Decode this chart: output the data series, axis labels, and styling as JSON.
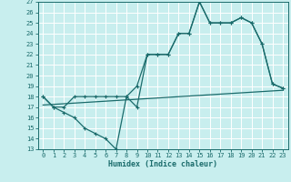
{
  "title": "",
  "xlabel": "Humidex (Indice chaleur)",
  "xlim": [
    -0.5,
    23.5
  ],
  "ylim": [
    13,
    27
  ],
  "yticks": [
    13,
    14,
    15,
    16,
    17,
    18,
    19,
    20,
    21,
    22,
    23,
    24,
    25,
    26,
    27
  ],
  "xticks": [
    0,
    1,
    2,
    3,
    4,
    5,
    6,
    7,
    8,
    9,
    10,
    11,
    12,
    13,
    14,
    15,
    16,
    17,
    18,
    19,
    20,
    21,
    22,
    23
  ],
  "bg_color": "#c8eeee",
  "line_color": "#1a6b6b",
  "grid_color": "#ffffff",
  "line1_x": [
    0,
    1,
    2,
    3,
    4,
    5,
    6,
    7,
    8,
    9,
    10,
    11,
    12,
    13,
    14,
    15,
    16,
    17,
    18,
    19,
    20,
    21,
    22,
    23
  ],
  "line1_y": [
    18,
    17,
    16.5,
    16,
    15,
    14.5,
    14,
    13,
    18,
    17,
    22,
    22,
    22,
    24,
    24,
    27,
    25,
    25,
    25,
    25.5,
    25,
    23,
    19.2,
    18.8
  ],
  "line2_x": [
    0,
    1,
    2,
    3,
    4,
    5,
    6,
    7,
    8,
    9,
    10,
    11,
    12,
    13,
    14,
    15,
    16,
    17,
    18,
    19,
    20,
    21,
    22,
    23
  ],
  "line2_y": [
    18,
    17,
    17,
    18,
    18,
    18,
    18,
    18,
    18,
    19,
    22,
    22,
    22,
    24,
    24,
    27,
    25,
    25,
    25,
    25.5,
    25,
    23,
    19.2,
    18.8
  ],
  "line3_x": [
    0,
    23
  ],
  "line3_y": [
    17.2,
    18.6
  ],
  "tick_fontsize": 5,
  "xlabel_fontsize": 6
}
